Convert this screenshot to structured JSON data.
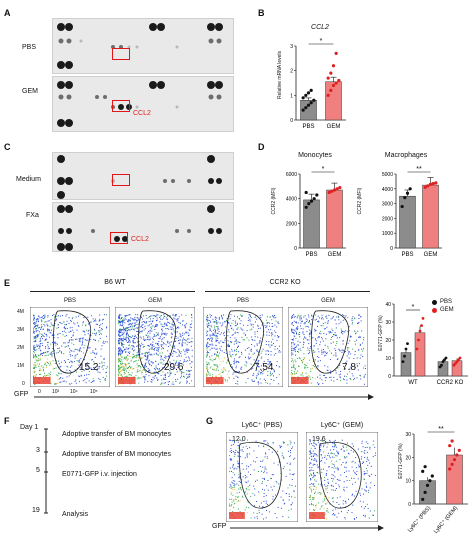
{
  "panels": {
    "A": {
      "label": "A",
      "rows": [
        "PBS",
        "GEM"
      ],
      "highlight": "CCL2"
    },
    "B": {
      "label": "B",
      "title": "CCL2",
      "ylabel": "Relative mRNA levels",
      "sig": "*"
    },
    "C": {
      "label": "C",
      "rows": [
        "Medium",
        "FXa"
      ],
      "highlight": "CCL2"
    },
    "D": {
      "label": "D",
      "sub1_title": "Monocytes",
      "sub2_title": "Macrophages",
      "ylabel1": "CCR2 (MFI)",
      "ylabel2": "CCR2 (MFI)",
      "sig1": "*",
      "sig2": "**"
    },
    "E": {
      "label": "E",
      "group1": "B6 WT",
      "group2": "CCR2 KO",
      "plots": [
        {
          "label": "PBS",
          "value": "15.2"
        },
        {
          "label": "GEM",
          "value": "29.6"
        },
        {
          "label": "PBS",
          "value": "7.54"
        },
        {
          "label": "GEM",
          "value": "7.8"
        }
      ],
      "xaxis_label": "GFP",
      "ylabel": "E0771-GFP (%)",
      "legend": [
        "PBS",
        "GEM"
      ],
      "sig": "*",
      "yticks": [
        "4M",
        "3M",
        "2M",
        "1M",
        "0"
      ],
      "xticks": [
        "0",
        "10³",
        "10⁴",
        "10⁵"
      ]
    },
    "F": {
      "label": "F",
      "timeline": [
        {
          "day": "Day 1",
          "event": "Adoptive transfer of BM monocytes"
        },
        {
          "day": "3",
          "event": "Adoptive transfer of BM monocytes"
        },
        {
          "day": "5",
          "event": "E0771-GFP i.v. injection"
        },
        {
          "day": "19",
          "event": "Analysis"
        }
      ]
    },
    "G": {
      "label": "G",
      "plots": [
        {
          "label": "Ly6C⁺ (PBS)",
          "value": "12.0"
        },
        {
          "label": "Ly6C⁺ (GEM)",
          "value": "19.6"
        }
      ],
      "xaxis_label": "GFP",
      "ylabel": "E0771-GFP (%)",
      "sig": "**",
      "xcats": [
        "Ly6C⁺ (PBS)",
        "Ly6C⁺ (GEM)"
      ]
    }
  },
  "chart_data": [
    {
      "type": "bar",
      "id": "B",
      "title": "CCL2",
      "ylabel": "Relative mRNA levels",
      "categories": [
        "PBS",
        "GEM"
      ],
      "values": [
        0.8,
        1.55
      ],
      "ylim": [
        0,
        3
      ],
      "yticks": [
        0,
        1,
        2,
        3
      ],
      "points": [
        [
          0.4,
          0.5,
          0.6,
          0.7,
          0.8,
          0.9,
          1.0,
          1.1,
          1.2
        ],
        [
          1.0,
          1.2,
          1.4,
          1.5,
          1.6,
          1.7,
          1.9,
          2.2,
          2.7
        ]
      ],
      "colors": [
        "#8c8c8c",
        "#f08080"
      ]
    },
    {
      "type": "bar",
      "id": "D1",
      "title": "Monocytes",
      "ylabel": "CCR2 (MFI)",
      "categories": [
        "PBS",
        "GEM"
      ],
      "values": [
        3900,
        4700
      ],
      "ylim": [
        0,
        6000
      ],
      "yticks": [
        0,
        2000,
        4000,
        6000
      ],
      "points": [
        [
          3300,
          3600,
          3800,
          4000,
          4300,
          4500
        ],
        [
          4500,
          4600,
          4700,
          4800,
          4900
        ]
      ],
      "colors": [
        "#8c8c8c",
        "#f08080"
      ]
    },
    {
      "type": "bar",
      "id": "D2",
      "title": "Macrophages",
      "ylabel": "CCR2 (MFI)",
      "categories": [
        "PBS",
        "GEM"
      ],
      "values": [
        3500,
        4250
      ],
      "ylim": [
        0,
        5000
      ],
      "yticks": [
        0,
        1000,
        2000,
        3000,
        4000,
        5000
      ],
      "points": [
        [
          2800,
          3400,
          3700,
          4000
        ],
        [
          4100,
          4200,
          4300,
          4350,
          4400
        ]
      ],
      "colors": [
        "#8c8c8c",
        "#f08080"
      ]
    },
    {
      "type": "bar",
      "id": "E",
      "ylabel": "E0771-GFP (%)",
      "categories": [
        "WT",
        "CCR2 KO"
      ],
      "series": [
        {
          "name": "PBS",
          "values": [
            13,
            8
          ]
        },
        {
          "name": "GEM",
          "values": [
            24,
            8.5
          ]
        }
      ],
      "ylim": [
        0,
        40
      ],
      "yticks": [
        0,
        10,
        20,
        30,
        40
      ],
      "points": [
        [
          [
            8,
            11,
            15,
            18
          ],
          [
            15,
            20,
            25,
            28,
            32
          ]
        ],
        [
          [
            5,
            6,
            8,
            9,
            10
          ],
          [
            6,
            7,
            8,
            9,
            10
          ]
        ]
      ],
      "colors": [
        "#8c8c8c",
        "#f08080"
      ]
    },
    {
      "type": "bar",
      "id": "G",
      "ylabel": "E0771-GFP (%)",
      "categories": [
        "Ly6C⁺ (PBS)",
        "Ly6C⁺ (GEM)"
      ],
      "values": [
        10,
        21
      ],
      "ylim": [
        0,
        30
      ],
      "yticks": [
        0,
        10,
        20,
        30
      ],
      "points": [
        [
          2,
          5,
          8,
          10,
          12,
          14,
          16
        ],
        [
          15,
          17,
          19,
          21,
          23,
          25,
          27
        ]
      ],
      "colors": [
        "#8c8c8c",
        "#f08080"
      ]
    }
  ]
}
